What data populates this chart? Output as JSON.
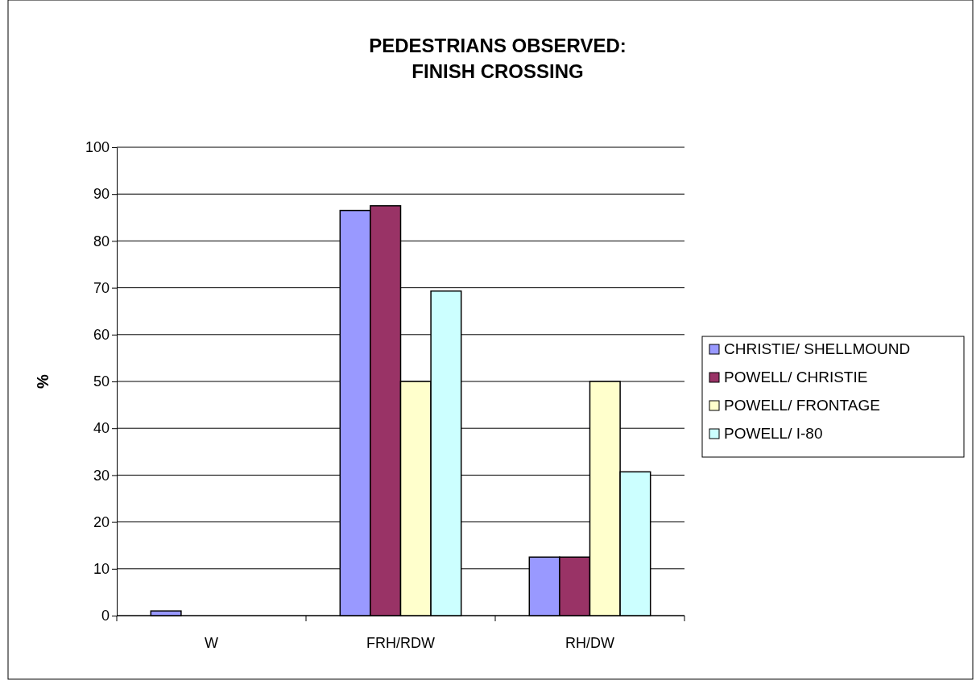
{
  "chart_data": {
    "type": "bar",
    "title": "PEDESTRIANS OBSERVED:\nFINISH CROSSING",
    "ylabel": "%",
    "categories": [
      "W",
      "FRH/RDW",
      "RH/DW"
    ],
    "series": [
      {
        "name": "CHRISTIE/ SHELLMOUND",
        "color": "#9999ff",
        "values": [
          1,
          86.5,
          12.5
        ]
      },
      {
        "name": "POWELL/ CHRISTIE",
        "color": "#993366",
        "values": [
          0,
          87.5,
          12.5
        ]
      },
      {
        "name": "POWELL/ FRONTAGE",
        "color": "#ffffcc",
        "values": [
          0,
          50,
          50
        ]
      },
      {
        "name": "POWELL/ I-80",
        "color": "#ccffff",
        "values": [
          0,
          69.3,
          30.7
        ]
      }
    ],
    "ylim": [
      0,
      100
    ],
    "yticks": [
      0,
      10,
      20,
      30,
      40,
      50,
      60,
      70,
      80,
      90,
      100
    ],
    "grid": "y",
    "legend": "right"
  }
}
